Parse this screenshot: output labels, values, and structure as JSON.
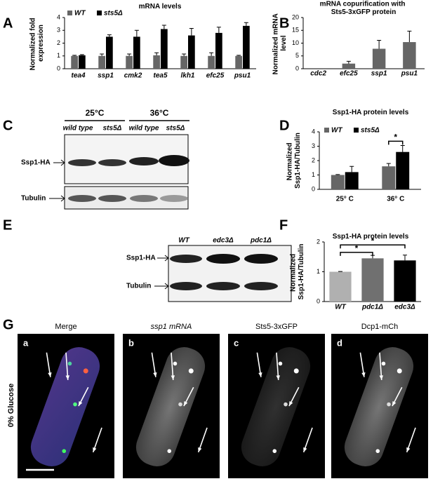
{
  "panel_labels": [
    "A",
    "B",
    "C",
    "D",
    "E",
    "F",
    "G"
  ],
  "chart_data": [
    {
      "type": "bar",
      "title": "mRNA levels",
      "y_label": "Normalized fold expression",
      "categories": [
        "tea4",
        "ssp1",
        "cmk2",
        "tea5",
        "lkh1",
        "efc25",
        "psu1"
      ],
      "series": [
        {
          "name": "WT",
          "color": "#666666",
          "values": [
            1.0,
            1.0,
            1.0,
            1.05,
            1.0,
            1.0,
            1.0
          ],
          "errors": [
            0.05,
            0.15,
            0.15,
            0.2,
            0.15,
            0.25,
            0.05
          ]
        },
        {
          "name": "sts5Δ",
          "color": "#000000",
          "values": [
            1.05,
            2.5,
            2.5,
            3.1,
            2.6,
            2.8,
            3.35
          ],
          "errors": [
            0.05,
            0.15,
            0.5,
            0.3,
            0.55,
            0.45,
            0.25
          ]
        }
      ],
      "ylim": [
        0,
        4
      ],
      "yticks": [
        0,
        1,
        2,
        3,
        4
      ],
      "legend": "top-left"
    },
    {
      "type": "bar",
      "title": "mRNA copurification with Sts5-3xGFP protein",
      "y_label": "Normalized mRNA level",
      "categories": [
        "cdc2",
        "efc25",
        "ssp1",
        "psu1"
      ],
      "series": [
        {
          "color": "#666666",
          "values": [
            0,
            2,
            7.8,
            10.4
          ],
          "errors": [
            0,
            0.9,
            3.3,
            4.3
          ]
        }
      ],
      "ylim": [
        0,
        20
      ],
      "yticks": [
        0,
        5,
        10,
        15,
        20
      ]
    },
    {
      "type": "bar",
      "title": "Ssp1-HA protein levels",
      "y_label": "Normalized Ssp1-HA/Tubulin",
      "categories": [
        "25°  C",
        "36°  C"
      ],
      "series": [
        {
          "name": "WT",
          "color": "#666666",
          "values": [
            1.0,
            1.6
          ],
          "errors": [
            0.03,
            0.2
          ]
        },
        {
          "name": "sts5Δ",
          "color": "#000000",
          "values": [
            1.2,
            2.6
          ],
          "errors": [
            0.4,
            0.45
          ]
        }
      ],
      "ylim": [
        0,
        4
      ],
      "yticks": [
        0,
        1,
        2,
        3,
        4
      ],
      "legend": "top-left",
      "annotations": [
        "*"
      ]
    },
    {
      "type": "bar",
      "title": "Ssp1-HA protein levels",
      "y_label": "Normalized Ssp1-HA/Tubulin",
      "categories": [
        "WT",
        "pdc1Δ",
        "edc3Δ"
      ],
      "series": [
        {
          "colors": [
            "#b0b0b0",
            "#707070",
            "#000000"
          ],
          "values": [
            1.0,
            1.45,
            1.38
          ],
          "errors": [
            0.01,
            0.1,
            0.18
          ]
        }
      ],
      "ylim": [
        0,
        2
      ],
      "yticks": [
        0,
        1,
        2
      ],
      "annotations": [
        "*",
        "*"
      ]
    }
  ],
  "blots": {
    "C": {
      "temperatures": [
        "25°C",
        "36°C"
      ],
      "lanes": [
        "wild type",
        "sts5Δ",
        "wild type",
        "sts5Δ"
      ],
      "rows": [
        "Ssp1-HA",
        "Tubulin"
      ]
    },
    "E": {
      "lanes": [
        "WT",
        "edc3Δ",
        "pdc1Δ"
      ],
      "rows": [
        "Ssp1-HA",
        "Tubulin"
      ]
    }
  },
  "microscopy": {
    "condition": "0% Glucose",
    "channels": [
      {
        "letter": "a",
        "title": "Merge"
      },
      {
        "letter": "b",
        "title": "ssp1 mRNA"
      },
      {
        "letter": "c",
        "title": "Sts5-3xGFP"
      },
      {
        "letter": "d",
        "title": "Dcp1-mCh"
      }
    ]
  }
}
